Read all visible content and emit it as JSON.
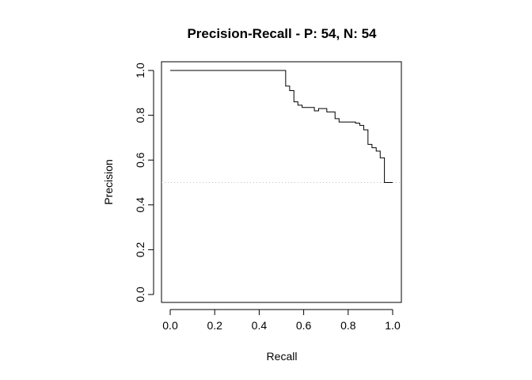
{
  "chart_data": {
    "type": "line",
    "title": "Precision-Recall - P: 54, N: 54",
    "xlabel": "Recall",
    "ylabel": "Precision",
    "xlim": [
      0,
      1
    ],
    "ylim": [
      0,
      1
    ],
    "xticks": [
      "0.0",
      "0.2",
      "0.4",
      "0.6",
      "0.8",
      "1.0"
    ],
    "yticks": [
      "0.0",
      "0.2",
      "0.4",
      "0.6",
      "0.8",
      "1.0"
    ],
    "grid": false,
    "legend": "none",
    "baseline": 0.5,
    "series": [
      {
        "line_style": "step",
        "x": [
          0.0,
          0.519,
          0.519,
          0.537,
          0.537,
          0.556,
          0.556,
          0.574,
          0.574,
          0.593,
          0.593,
          0.648,
          0.648,
          0.667,
          0.667,
          0.704,
          0.704,
          0.741,
          0.741,
          0.759,
          0.759,
          0.833,
          0.833,
          0.852,
          0.852,
          0.87,
          0.87,
          0.889,
          0.889,
          0.907,
          0.907,
          0.926,
          0.926,
          0.944,
          0.944,
          0.963,
          0.963,
          0.981,
          0.981,
          1.0
        ],
        "y": [
          1.0,
          1.0,
          0.93,
          0.93,
          0.91,
          0.91,
          0.86,
          0.86,
          0.845,
          0.845,
          0.835,
          0.835,
          0.82,
          0.82,
          0.83,
          0.83,
          0.815,
          0.815,
          0.785,
          0.785,
          0.77,
          0.77,
          0.765,
          0.765,
          0.755,
          0.755,
          0.735,
          0.735,
          0.67,
          0.67,
          0.655,
          0.655,
          0.64,
          0.64,
          0.61,
          0.61,
          0.5,
          0.5,
          0.5,
          0.5
        ]
      }
    ],
    "colors": {
      "line": "#000000",
      "baseline": "#bfbfbf"
    }
  }
}
